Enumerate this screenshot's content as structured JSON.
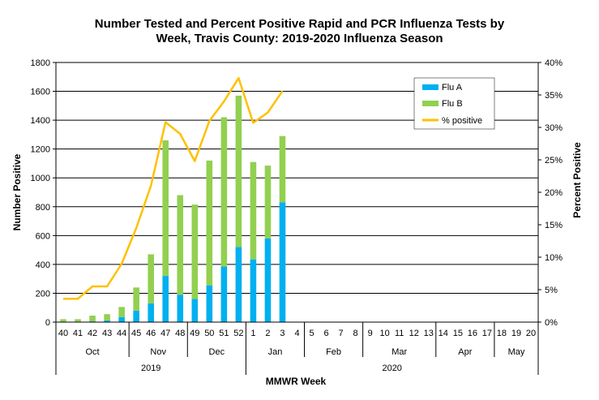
{
  "chart_data": {
    "type": "bar",
    "title_line1": "Number Tested and Percent Positive Rapid and PCR Influenza Tests by",
    "title_line2": "Week, Travis County:  2019-2020 Influenza Season",
    "ylabel": "Number Positive",
    "y2label": "Percent Positive",
    "xlabel": "MMWR Week",
    "ylim": [
      0,
      1800
    ],
    "y2lim": [
      0,
      40
    ],
    "yticks": [
      "0",
      "200",
      "400",
      "600",
      "800",
      "1000",
      "1200",
      "1400",
      "1600",
      "1800"
    ],
    "y2ticks": [
      "0%",
      "5%",
      "10%",
      "15%",
      "20%",
      "25%",
      "30%",
      "35%",
      "40%"
    ],
    "categories": [
      "40",
      "41",
      "42",
      "43",
      "44",
      "45",
      "46",
      "47",
      "48",
      "49",
      "50",
      "51",
      "52",
      "1",
      "2",
      "3",
      "4",
      "5",
      "6",
      "7",
      "8",
      "9",
      "10",
      "11",
      "12",
      "13",
      "14",
      "15",
      "16",
      "17",
      "18",
      "19",
      "20"
    ],
    "months": [
      {
        "label": "Oct",
        "start": 0,
        "count": 5
      },
      {
        "label": "Nov",
        "start": 5,
        "count": 4
      },
      {
        "label": "Dec",
        "start": 9,
        "count": 4
      },
      {
        "label": "Jan",
        "start": 13,
        "count": 4
      },
      {
        "label": "Feb",
        "start": 17,
        "count": 4
      },
      {
        "label": "Mar",
        "start": 21,
        "count": 5
      },
      {
        "label": "Apr",
        "start": 26,
        "count": 4
      },
      {
        "label": "May",
        "start": 30,
        "count": 3
      }
    ],
    "years": [
      {
        "label": "2019",
        "start": 0,
        "count": 13
      },
      {
        "label": "2020",
        "start": 13,
        "count": 20
      }
    ],
    "series": [
      {
        "name": "Flu A",
        "color": "#00b0f0",
        "values": [
          3,
          3,
          5,
          12,
          35,
          80,
          130,
          320,
          190,
          160,
          255,
          385,
          520,
          435,
          580,
          830,
          null,
          null,
          null,
          null,
          null,
          null,
          null,
          null,
          null,
          null,
          null,
          null,
          null,
          null,
          null,
          null,
          null
        ]
      },
      {
        "name": "Flu B",
        "color": "#92d050",
        "values": [
          17,
          17,
          40,
          43,
          70,
          160,
          340,
          940,
          690,
          655,
          865,
          1035,
          1050,
          675,
          505,
          460,
          null,
          null,
          null,
          null,
          null,
          null,
          null,
          null,
          null,
          null,
          null,
          null,
          null,
          null,
          null,
          null,
          null
        ]
      }
    ],
    "line": {
      "name": "% positive",
      "color": "#ffc000",
      "axis": "right",
      "values": [
        3.6,
        3.6,
        5.5,
        5.5,
        9.0,
        14.5,
        21.0,
        30.8,
        29.0,
        24.8,
        31.0,
        34.0,
        37.6,
        30.7,
        32.3,
        35.6,
        null,
        null,
        null,
        null,
        null,
        null,
        null,
        null,
        null,
        null,
        null,
        null,
        null,
        null,
        null,
        null,
        null
      ]
    },
    "legend": {
      "position": "top-right"
    }
  }
}
